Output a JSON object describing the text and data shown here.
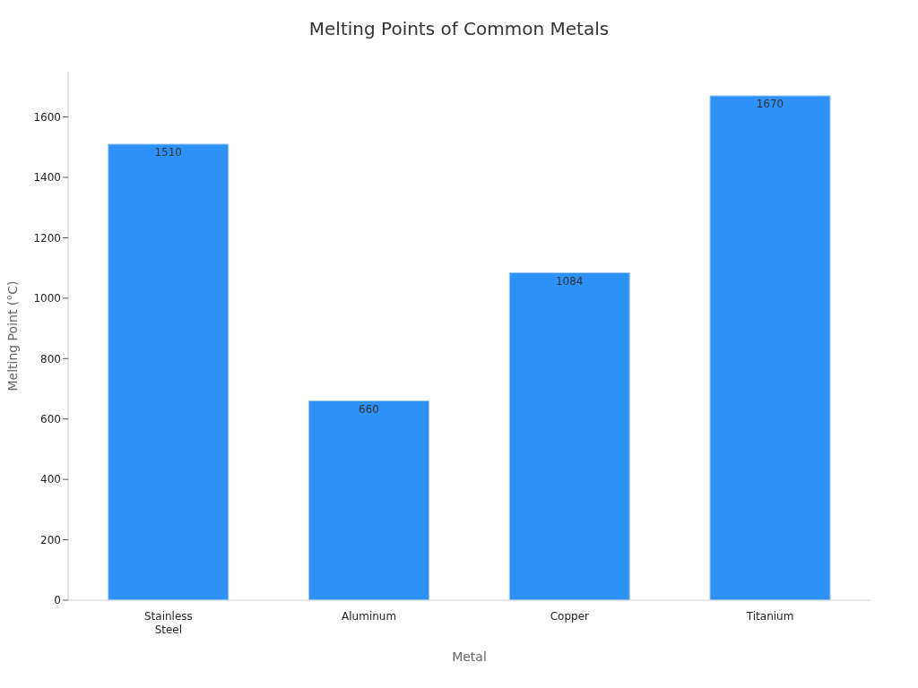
{
  "chart_data": {
    "type": "bar",
    "title": "Melting Points of Common Metals",
    "xlabel": "Metal",
    "ylabel": "Melting Point (°C)",
    "categories": [
      "Stainless Steel",
      "Aluminum",
      "Copper",
      "Titanium"
    ],
    "values": [
      1510,
      660,
      1084,
      1670
    ],
    "color": "#2e91f8",
    "ylim": [
      0,
      1750
    ],
    "yticks": [
      0,
      200,
      400,
      600,
      800,
      1000,
      1200,
      1400,
      1600
    ],
    "data_labels": true,
    "grid": false,
    "legend": false
  }
}
